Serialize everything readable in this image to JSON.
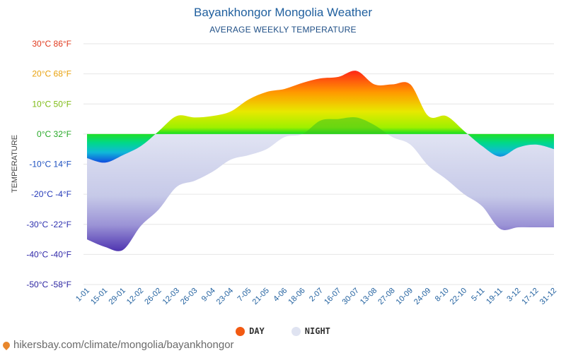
{
  "header": {
    "title": "Bayankhongor Mongolia Weather",
    "subtitle": "AVERAGE WEEKLY TEMPERATURE"
  },
  "legend": {
    "day_label": "DAY",
    "night_label": "NIGHT",
    "day_color": "#f25a12",
    "night_color": "#dfe3f1"
  },
  "footer": {
    "url": "hikersbay.com/climate/mongolia/bayankhongor"
  },
  "chart_data": {
    "type": "area",
    "ylabel": "TEMPERATURE",
    "ylim": [
      -50,
      30
    ],
    "yticks": [
      {
        "value": 30,
        "label": "30°C 86°F",
        "color": "#e03a1e"
      },
      {
        "value": 20,
        "label": "20°C 68°F",
        "color": "#e8a10d"
      },
      {
        "value": 10,
        "label": "10°C 50°F",
        "color": "#7dba12"
      },
      {
        "value": 0,
        "label": "0°C 32°F",
        "color": "#26a826"
      },
      {
        "value": -10,
        "label": "-10°C 14°F",
        "color": "#1c4fbf"
      },
      {
        "value": -20,
        "label": "-20°C -4°F",
        "color": "#2338b8"
      },
      {
        "value": -30,
        "label": "-30°C -22°F",
        "color": "#2c2fae"
      },
      {
        "value": -40,
        "label": "-40°C -40°F",
        "color": "#2f27a8"
      },
      {
        "value": -50,
        "label": "-50°C -58°F",
        "color": "#2a23a0"
      }
    ],
    "categories": [
      "1-01",
      "15-01",
      "29-01",
      "12-02",
      "26-02",
      "12-03",
      "26-03",
      "9-04",
      "23-04",
      "7-05",
      "21-05",
      "4-06",
      "18-06",
      "2-07",
      "16-07",
      "30-07",
      "13-08",
      "27-08",
      "10-09",
      "24-09",
      "8-10",
      "22-10",
      "5-11",
      "19-11",
      "3-12",
      "17-12",
      "31-12"
    ],
    "series": [
      {
        "name": "DAY",
        "values": [
          -8,
          -9.5,
          -7,
          -4,
          1,
          6,
          5.5,
          6,
          7.5,
          11.5,
          14,
          15,
          17,
          18.5,
          19,
          21,
          16.5,
          16.5,
          16.5,
          6,
          6,
          1,
          -4,
          -7.5,
          -4.5,
          -3.5,
          -5
        ]
      },
      {
        "name": "NIGHT",
        "values": [
          -35,
          -37.5,
          -38.5,
          -30.5,
          -25,
          -17.5,
          -15.5,
          -12.5,
          -8.5,
          -7,
          -5,
          -1,
          0,
          4.5,
          5,
          5.5,
          3,
          -1,
          -3.5,
          -10.5,
          -15,
          -20,
          -24,
          -31.5,
          -31,
          -31,
          -31
        ]
      }
    ]
  }
}
